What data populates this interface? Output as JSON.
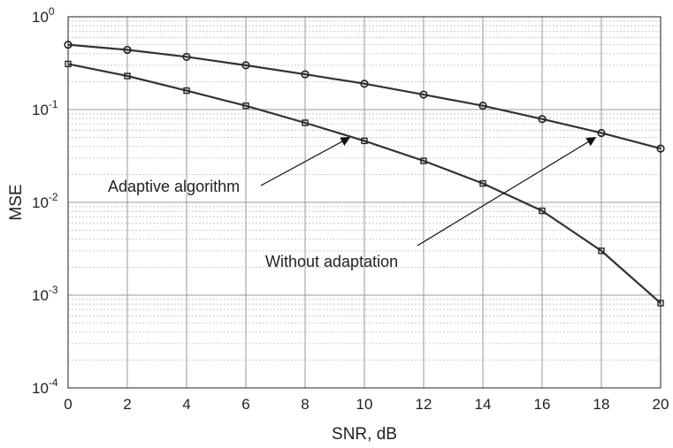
{
  "chart_data": {
    "type": "line",
    "xlabel": "SNR, dB",
    "ylabel": "MSE",
    "xlim": [
      0,
      20
    ],
    "ylim": [
      0.0001,
      1
    ],
    "y_scale": "log",
    "grid": true,
    "x_ticks": [
      0,
      2,
      4,
      6,
      8,
      10,
      12,
      14,
      16,
      18,
      20
    ],
    "y_ticks": [
      {
        "value": 0.0001,
        "base": "10",
        "exp": "-4"
      },
      {
        "value": 0.001,
        "base": "10",
        "exp": "-3"
      },
      {
        "value": 0.01,
        "base": "10",
        "exp": "-2"
      },
      {
        "value": 0.1,
        "base": "10",
        "exp": "-1"
      },
      {
        "value": 1,
        "base": "10",
        "exp": "0"
      }
    ],
    "x": [
      0,
      2,
      4,
      6,
      8,
      10,
      12,
      14,
      16,
      18,
      20
    ],
    "series": [
      {
        "id": "without-adaptation",
        "marker": "circle",
        "values": [
          0.5,
          0.44,
          0.37,
          0.3,
          0.24,
          0.19,
          0.145,
          0.11,
          0.079,
          0.056,
          0.038
        ]
      },
      {
        "id": "adaptive-algorithm",
        "marker": "square",
        "values": [
          0.31,
          0.23,
          0.16,
          0.11,
          0.072,
          0.046,
          0.028,
          0.016,
          0.0081,
          0.003,
          0.00082
        ]
      }
    ],
    "annotations": [
      {
        "id": "adaptive",
        "text": "Adaptive algorithm",
        "target": {
          "x": 9.5,
          "y": 0.05
        }
      },
      {
        "id": "without",
        "text": "Without adaptation",
        "target": {
          "x": 17.8,
          "y": 0.05
        }
      }
    ]
  }
}
